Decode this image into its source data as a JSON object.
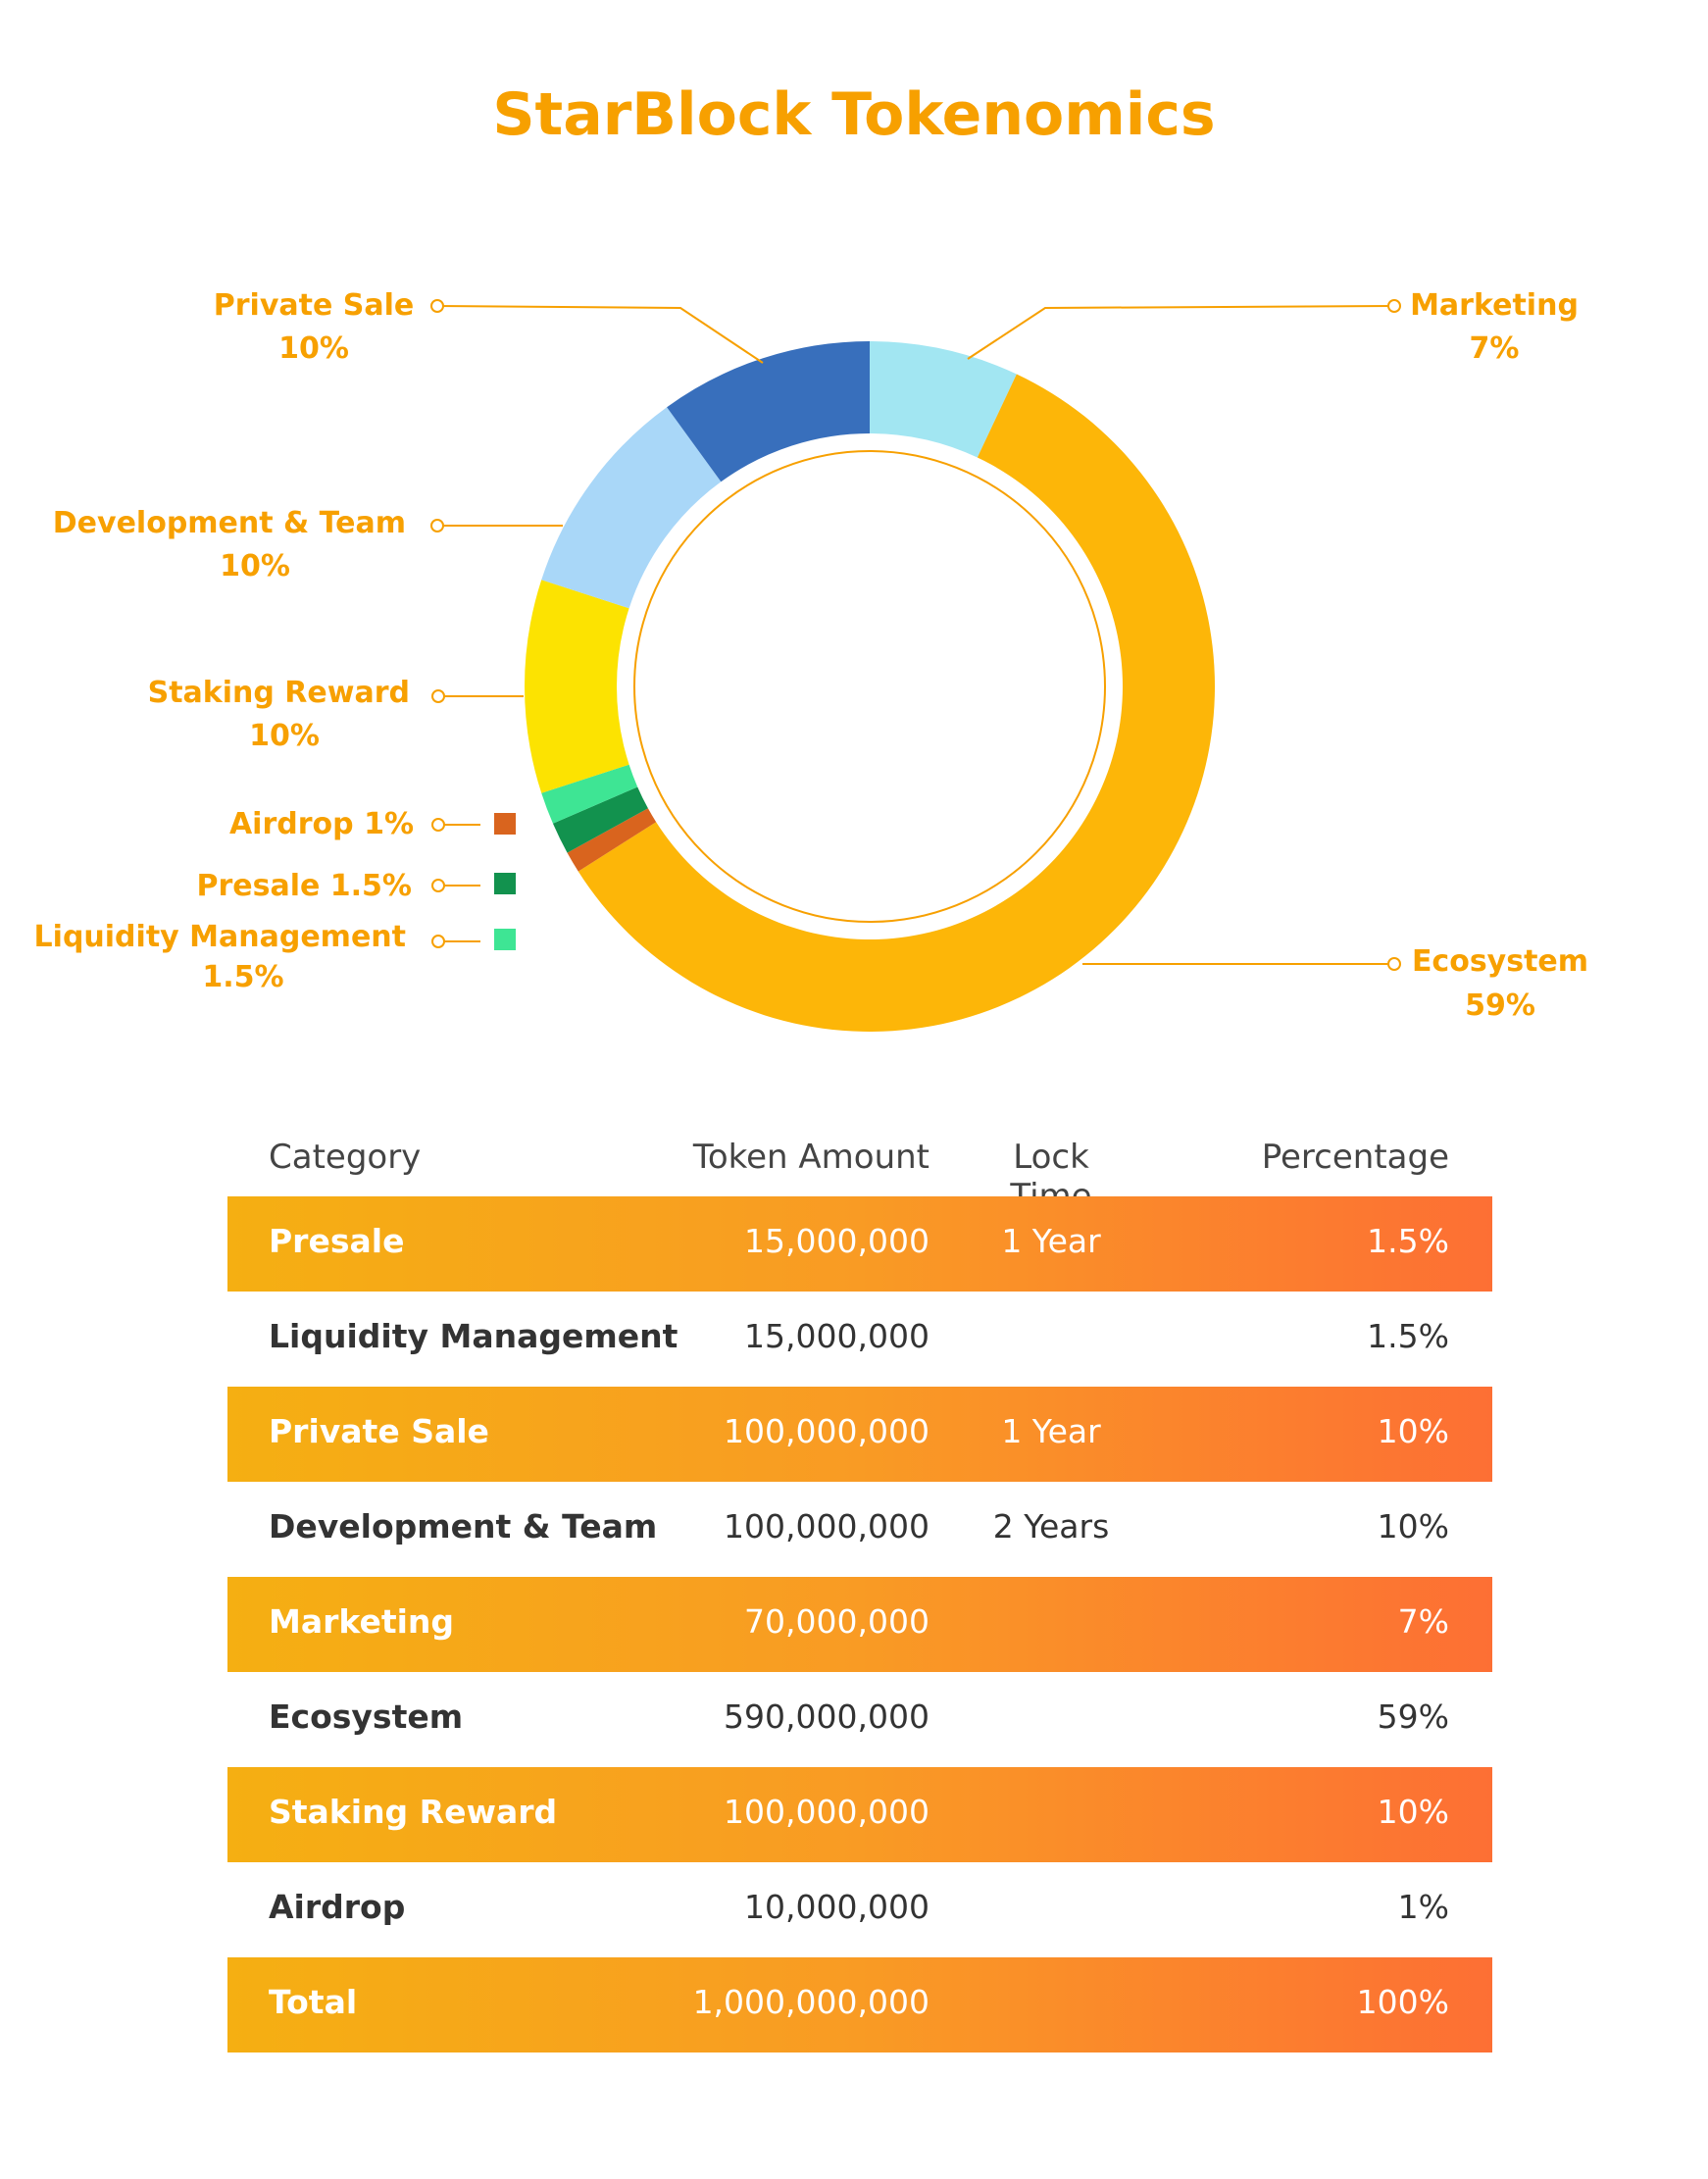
{
  "title": "StarBlock Tokenomics",
  "colors": {
    "accent": "#F7A000",
    "row_gradient_start": "#F5AF12",
    "row_gradient_end": "#FD6F34"
  },
  "chart_data": {
    "type": "pie",
    "variant": "donut",
    "title": "StarBlock Tokenomics",
    "slices": [
      {
        "label": "Marketing",
        "value": 7,
        "display": "7%",
        "color": "#A2E6F2"
      },
      {
        "label": "Ecosystem",
        "value": 59,
        "display": "59%",
        "color": "#FDB608"
      },
      {
        "label": "Airdrop",
        "value": 1,
        "display": "1%",
        "color": "#D9641E"
      },
      {
        "label": "Presale",
        "value": 1.5,
        "display": "1.5%",
        "color": "#12924E"
      },
      {
        "label": "Liquidity Management",
        "value": 1.5,
        "display": "1.5%",
        "color": "#3EE594"
      },
      {
        "label": "Staking Reward",
        "value": 10,
        "display": "10%",
        "color": "#FCE301"
      },
      {
        "label": "Development & Team",
        "value": 10,
        "display": "10%",
        "color": "#A9D7F8"
      },
      {
        "label": "Private Sale",
        "value": 10,
        "display": "10%",
        "color": "#386FBC"
      }
    ]
  },
  "legend": {
    "private_sale": {
      "name": "Private Sale",
      "pct": "10%"
    },
    "marketing": {
      "name": "Marketing",
      "pct": "7%"
    },
    "development": {
      "name": "Development & Team",
      "pct": "10%"
    },
    "staking": {
      "name": "Staking Reward",
      "pct": "10%"
    },
    "airdrop": {
      "name": "Airdrop 1%"
    },
    "presale": {
      "name": "Presale  1.5%"
    },
    "liquidity": {
      "name": "Liquidity Management",
      "pct": "1.5%"
    },
    "ecosystem": {
      "name": "Ecosystem",
      "pct": "59%"
    }
  },
  "table": {
    "headers": {
      "category": "Category",
      "amount": "Token Amount",
      "lock": "Lock Time",
      "percentage": "Percentage"
    },
    "rows": [
      {
        "category": "Presale",
        "amount": "15,000,000",
        "lock": "1 Year",
        "percentage": "1.5%"
      },
      {
        "category": "Liquidity Management",
        "amount": "15,000,000",
        "lock": "",
        "percentage": "1.5%"
      },
      {
        "category": "Private Sale",
        "amount": "100,000,000",
        "lock": "1 Year",
        "percentage": "10%"
      },
      {
        "category": "Development & Team",
        "amount": "100,000,000",
        "lock": "2 Years",
        "percentage": "10%"
      },
      {
        "category": "Marketing",
        "amount": "70,000,000",
        "lock": "",
        "percentage": "7%"
      },
      {
        "category": "Ecosystem",
        "amount": "590,000,000",
        "lock": "",
        "percentage": "59%"
      },
      {
        "category": "Staking Reward",
        "amount": "100,000,000",
        "lock": "",
        "percentage": "10%"
      },
      {
        "category": "Airdrop",
        "amount": "10,000,000",
        "lock": "",
        "percentage": "1%"
      },
      {
        "category": "Total",
        "amount": "1,000,000,000",
        "lock": "",
        "percentage": "100%"
      }
    ]
  }
}
